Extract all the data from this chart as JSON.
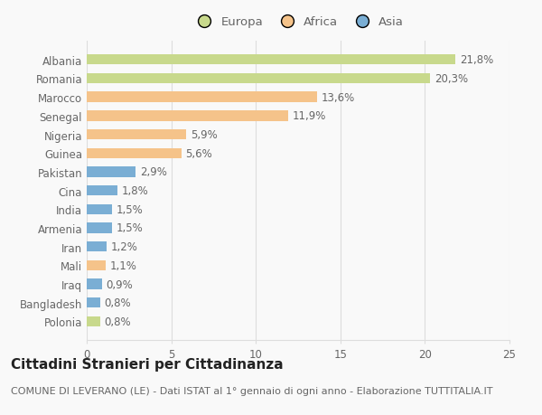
{
  "categories": [
    "Polonia",
    "Bangladesh",
    "Iraq",
    "Mali",
    "Iran",
    "Armenia",
    "India",
    "Cina",
    "Pakistan",
    "Guinea",
    "Nigeria",
    "Senegal",
    "Marocco",
    "Romania",
    "Albania"
  ],
  "values": [
    0.8,
    0.8,
    0.9,
    1.1,
    1.2,
    1.5,
    1.5,
    1.8,
    2.9,
    5.6,
    5.9,
    11.9,
    13.6,
    20.3,
    21.8
  ],
  "labels": [
    "0,8%",
    "0,8%",
    "0,9%",
    "1,1%",
    "1,2%",
    "1,5%",
    "1,5%",
    "1,8%",
    "2,9%",
    "5,6%",
    "5,9%",
    "11,9%",
    "13,6%",
    "20,3%",
    "21,8%"
  ],
  "colors": [
    "#c8d98c",
    "#7aaed4",
    "#7aaed4",
    "#f5c38a",
    "#7aaed4",
    "#7aaed4",
    "#7aaed4",
    "#7aaed4",
    "#7aaed4",
    "#f5c38a",
    "#f5c38a",
    "#f5c38a",
    "#f5c38a",
    "#c8d98c",
    "#c8d98c"
  ],
  "continent": [
    "Europa",
    "Asia",
    "Asia",
    "Africa",
    "Asia",
    "Asia",
    "Asia",
    "Asia",
    "Asia",
    "Africa",
    "Africa",
    "Africa",
    "Africa",
    "Europa",
    "Europa"
  ],
  "legend_labels": [
    "Europa",
    "Africa",
    "Asia"
  ],
  "legend_colors": [
    "#c8d98c",
    "#f5c38a",
    "#7aaed4"
  ],
  "title": "Cittadini Stranieri per Cittadinanza",
  "subtitle": "COMUNE DI LEVERANO (LE) - Dati ISTAT al 1° gennaio di ogni anno - Elaborazione TUTTITALIA.IT",
  "xlim": [
    0,
    25
  ],
  "xticks": [
    0,
    5,
    10,
    15,
    20,
    25
  ],
  "bar_height": 0.55,
  "bg_color": "#f9f9f9",
  "grid_color": "#dddddd",
  "text_color": "#666666",
  "title_color": "#222222",
  "subtitle_color": "#666666",
  "title_fontsize": 11,
  "subtitle_fontsize": 8,
  "label_fontsize": 8.5,
  "tick_fontsize": 8.5,
  "legend_fontsize": 9.5
}
